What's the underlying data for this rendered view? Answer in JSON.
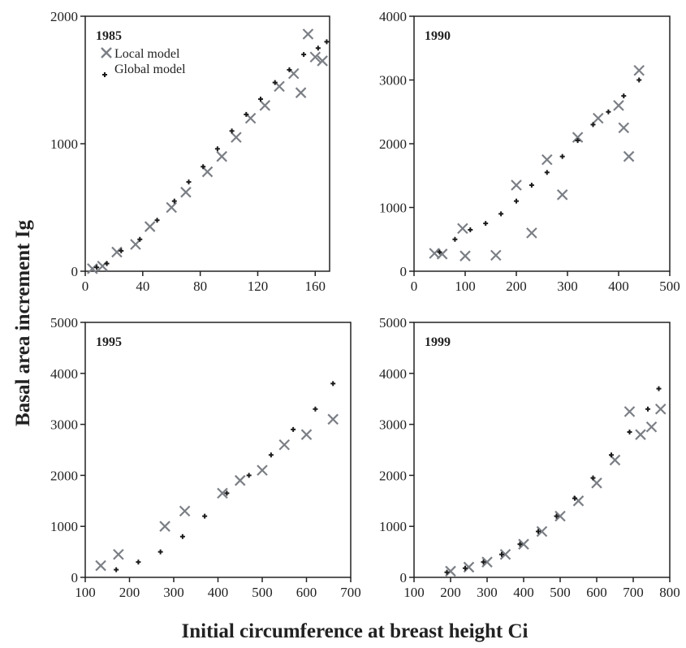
{
  "figure": {
    "ylabel": "Basal area increment Ig",
    "xlabel": "Initial circumference at breast height Ci"
  },
  "legend": {
    "local_label": "Local model",
    "global_label": "Global model"
  },
  "colors": {
    "observed": "#a9adb1",
    "local": "#7b7f85",
    "global": "#1a1a1a",
    "axis": "#222222"
  },
  "chart_data": [
    {
      "type": "scatter",
      "title": "1985",
      "xlim": [
        0,
        170
      ],
      "ylim": [
        0,
        2000
      ],
      "xticks": [
        0,
        40,
        80,
        120,
        160
      ],
      "yticks": [
        0,
        1000,
        2000
      ],
      "series": [
        {
          "name": "Local model",
          "marker": "x",
          "x": [
            5,
            12,
            22,
            35,
            45,
            60,
            70,
            85,
            95,
            105,
            115,
            125,
            135,
            145,
            150,
            155,
            160,
            165
          ],
          "y": [
            20,
            40,
            150,
            210,
            350,
            500,
            620,
            780,
            900,
            1050,
            1200,
            1300,
            1450,
            1550,
            1400,
            1860,
            1680,
            1650
          ]
        },
        {
          "name": "Global model",
          "marker": "+",
          "x": [
            8,
            15,
            25,
            38,
            50,
            62,
            72,
            82,
            92,
            102,
            112,
            122,
            132,
            142,
            152,
            162,
            168
          ],
          "y": [
            30,
            60,
            160,
            250,
            400,
            550,
            700,
            820,
            960,
            1100,
            1230,
            1350,
            1480,
            1580,
            1700,
            1750,
            1800
          ]
        }
      ]
    },
    {
      "type": "scatter",
      "title": "1990",
      "xlim": [
        0,
        500
      ],
      "ylim": [
        0,
        4000
      ],
      "xticks": [
        0,
        100,
        200,
        300,
        400,
        500
      ],
      "yticks": [
        0,
        1000,
        2000,
        3000,
        4000
      ],
      "series": [
        {
          "name": "Local model",
          "marker": "x",
          "x": [
            40,
            55,
            95,
            100,
            160,
            200,
            230,
            260,
            290,
            320,
            360,
            400,
            410,
            420,
            440
          ],
          "y": [
            280,
            270,
            670,
            240,
            250,
            1350,
            600,
            1750,
            1200,
            2100,
            2400,
            2600,
            2250,
            1800,
            3150
          ]
        },
        {
          "name": "Global model",
          "marker": "+",
          "x": [
            50,
            80,
            110,
            140,
            170,
            200,
            230,
            260,
            290,
            320,
            350,
            380,
            410,
            440
          ],
          "y": [
            300,
            500,
            650,
            750,
            900,
            1100,
            1350,
            1550,
            1800,
            2050,
            2300,
            2500,
            2750,
            3000
          ]
        }
      ]
    },
    {
      "type": "scatter",
      "title": "1995",
      "xlim": [
        100,
        700
      ],
      "ylim": [
        0,
        5000
      ],
      "xticks": [
        100,
        200,
        300,
        400,
        500,
        600,
        700
      ],
      "yticks": [
        0,
        1000,
        2000,
        3000,
        4000,
        5000
      ],
      "series": [
        {
          "name": "Local model",
          "marker": "x",
          "x": [
            135,
            175,
            280,
            325,
            410,
            450,
            500,
            550,
            600,
            660
          ],
          "y": [
            230,
            450,
            1000,
            1300,
            1650,
            1900,
            2100,
            2600,
            2800,
            3100
          ]
        },
        {
          "name": "Global model",
          "marker": "+",
          "x": [
            170,
            220,
            270,
            320,
            370,
            420,
            470,
            520,
            570,
            620,
            660
          ],
          "y": [
            150,
            300,
            500,
            800,
            1200,
            1650,
            2000,
            2400,
            2900,
            3300,
            3800
          ]
        }
      ]
    },
    {
      "type": "scatter",
      "title": "1999",
      "xlim": [
        100,
        800
      ],
      "ylim": [
        0,
        5000
      ],
      "xticks": [
        100,
        200,
        300,
        400,
        500,
        600,
        700,
        800
      ],
      "yticks": [
        0,
        1000,
        2000,
        3000,
        4000,
        5000
      ],
      "series": [
        {
          "name": "Local model",
          "marker": "x",
          "x": [
            200,
            250,
            300,
            350,
            400,
            450,
            500,
            550,
            600,
            650,
            690,
            720,
            750,
            775
          ],
          "y": [
            120,
            200,
            300,
            450,
            650,
            900,
            1200,
            1500,
            1850,
            2300,
            3250,
            2800,
            2950,
            3300
          ]
        },
        {
          "name": "Global model",
          "marker": "+",
          "x": [
            190,
            240,
            290,
            340,
            390,
            440,
            490,
            540,
            590,
            640,
            690,
            740,
            770
          ],
          "y": [
            100,
            180,
            300,
            450,
            650,
            900,
            1200,
            1550,
            1950,
            2400,
            2850,
            3300,
            3700
          ]
        }
      ]
    }
  ]
}
